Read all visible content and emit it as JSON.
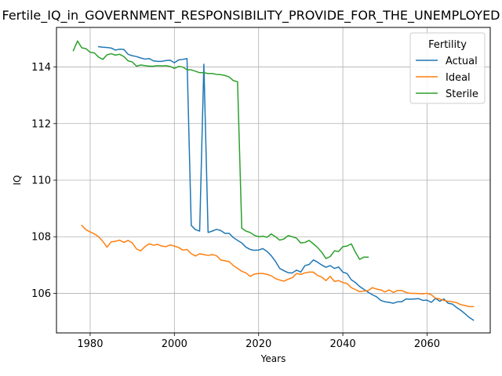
{
  "chart_data": {
    "type": "line",
    "title": "Fertile_IQ_in_GOVERNMENT_RESPONSIBILITY_PROVIDE_FOR_THE_UNEMPLOYED",
    "xlabel": "Years",
    "ylabel": "IQ",
    "xlim": [
      1972,
      2075
    ],
    "ylim": [
      104.6,
      115.4
    ],
    "x_ticks": [
      1980,
      2000,
      2020,
      2040,
      2060
    ],
    "y_ticks": [
      106,
      108,
      110,
      112,
      114
    ],
    "grid": true,
    "legend": {
      "title": "Fertility",
      "placement": "top-right"
    },
    "series": [
      {
        "name": "Actual",
        "color": "#1f77b4",
        "points": [
          [
            1982,
            114.72
          ],
          [
            1983,
            114.7
          ],
          [
            1984,
            114.69
          ],
          [
            1985,
            114.67
          ],
          [
            1986,
            114.6
          ],
          [
            1987,
            114.63
          ],
          [
            1988,
            114.62
          ],
          [
            1989,
            114.45
          ],
          [
            1990,
            114.4
          ],
          [
            1991,
            114.37
          ],
          [
            1992,
            114.32
          ],
          [
            1993,
            114.28
          ],
          [
            1994,
            114.3
          ],
          [
            1995,
            114.22
          ],
          [
            1996,
            114.2
          ],
          [
            1997,
            114.2
          ],
          [
            1998,
            114.23
          ],
          [
            1999,
            114.24
          ],
          [
            2000,
            114.15
          ],
          [
            2001,
            114.25
          ],
          [
            2002,
            114.27
          ],
          [
            2003,
            114.3
          ],
          [
            2004,
            108.4
          ],
          [
            2005,
            108.25
          ],
          [
            2006,
            108.2
          ],
          [
            2007,
            114.1
          ],
          [
            2008,
            108.15
          ],
          [
            2009,
            108.2
          ],
          [
            2010,
            108.26
          ],
          [
            2011,
            108.22
          ],
          [
            2012,
            108.12
          ],
          [
            2013,
            108.12
          ],
          [
            2014,
            107.97
          ],
          [
            2015,
            107.87
          ],
          [
            2016,
            107.78
          ],
          [
            2017,
            107.63
          ],
          [
            2018,
            107.55
          ],
          [
            2019,
            107.52
          ],
          [
            2020,
            107.53
          ],
          [
            2021,
            107.58
          ],
          [
            2022,
            107.48
          ],
          [
            2023,
            107.33
          ],
          [
            2024,
            107.13
          ],
          [
            2025,
            106.88
          ],
          [
            2026,
            106.8
          ],
          [
            2027,
            106.73
          ],
          [
            2028,
            106.72
          ],
          [
            2029,
            106.82
          ],
          [
            2030,
            106.75
          ],
          [
            2031,
            106.98
          ],
          [
            2032,
            107.02
          ],
          [
            2033,
            107.18
          ],
          [
            2034,
            107.1
          ],
          [
            2035,
            107.0
          ],
          [
            2036,
            106.92
          ],
          [
            2037,
            106.98
          ],
          [
            2038,
            106.88
          ],
          [
            2039,
            106.93
          ],
          [
            2040,
            106.75
          ],
          [
            2041,
            106.7
          ],
          [
            2042,
            106.48
          ],
          [
            2043,
            106.38
          ],
          [
            2044,
            106.24
          ],
          [
            2045,
            106.14
          ],
          [
            2046,
            106.04
          ],
          [
            2047,
            105.95
          ],
          [
            2048,
            105.88
          ],
          [
            2049,
            105.75
          ],
          [
            2050,
            105.7
          ],
          [
            2051,
            105.68
          ],
          [
            2052,
            105.65
          ],
          [
            2053,
            105.7
          ],
          [
            2054,
            105.7
          ],
          [
            2055,
            105.8
          ],
          [
            2056,
            105.79
          ],
          [
            2057,
            105.8
          ],
          [
            2058,
            105.81
          ],
          [
            2059,
            105.75
          ],
          [
            2060,
            105.76
          ],
          [
            2061,
            105.68
          ],
          [
            2062,
            105.82
          ],
          [
            2063,
            105.72
          ],
          [
            2064,
            105.8
          ],
          [
            2065,
            105.65
          ],
          [
            2066,
            105.62
          ],
          [
            2067,
            105.5
          ],
          [
            2068,
            105.4
          ],
          [
            2069,
            105.28
          ],
          [
            2070,
            105.15
          ],
          [
            2071,
            105.05
          ]
        ]
      },
      {
        "name": "Ideal",
        "color": "#ff7f0e",
        "points": [
          [
            1978,
            108.4
          ],
          [
            1979,
            108.25
          ],
          [
            1980,
            108.17
          ],
          [
            1981,
            108.1
          ],
          [
            1982,
            108.0
          ],
          [
            1983,
            107.84
          ],
          [
            1984,
            107.63
          ],
          [
            1985,
            107.82
          ],
          [
            1986,
            107.84
          ],
          [
            1987,
            107.88
          ],
          [
            1988,
            107.8
          ],
          [
            1989,
            107.87
          ],
          [
            1990,
            107.78
          ],
          [
            1991,
            107.57
          ],
          [
            1992,
            107.5
          ],
          [
            1993,
            107.65
          ],
          [
            1994,
            107.75
          ],
          [
            1995,
            107.7
          ],
          [
            1996,
            107.73
          ],
          [
            1997,
            107.67
          ],
          [
            1998,
            107.65
          ],
          [
            1999,
            107.71
          ],
          [
            2000,
            107.67
          ],
          [
            2001,
            107.62
          ],
          [
            2002,
            107.53
          ],
          [
            2003,
            107.55
          ],
          [
            2004,
            107.4
          ],
          [
            2005,
            107.32
          ],
          [
            2006,
            107.4
          ],
          [
            2007,
            107.37
          ],
          [
            2008,
            107.34
          ],
          [
            2009,
            107.37
          ],
          [
            2010,
            107.33
          ],
          [
            2011,
            107.18
          ],
          [
            2012,
            107.15
          ],
          [
            2013,
            107.12
          ],
          [
            2014,
            106.98
          ],
          [
            2015,
            106.88
          ],
          [
            2016,
            106.78
          ],
          [
            2017,
            106.72
          ],
          [
            2018,
            106.6
          ],
          [
            2019,
            106.68
          ],
          [
            2020,
            106.7
          ],
          [
            2021,
            106.7
          ],
          [
            2022,
            106.67
          ],
          [
            2023,
            106.62
          ],
          [
            2024,
            106.52
          ],
          [
            2025,
            106.47
          ],
          [
            2026,
            106.43
          ],
          [
            2027,
            106.5
          ],
          [
            2028,
            106.55
          ],
          [
            2029,
            106.7
          ],
          [
            2030,
            106.67
          ],
          [
            2031,
            106.72
          ],
          [
            2032,
            106.75
          ],
          [
            2033,
            106.75
          ],
          [
            2034,
            106.63
          ],
          [
            2035,
            106.57
          ],
          [
            2036,
            106.45
          ],
          [
            2037,
            106.6
          ],
          [
            2038,
            106.42
          ],
          [
            2039,
            106.45
          ],
          [
            2040,
            106.38
          ],
          [
            2041,
            106.35
          ],
          [
            2042,
            106.2
          ],
          [
            2043,
            106.13
          ],
          [
            2044,
            106.06
          ],
          [
            2045,
            106.08
          ],
          [
            2046,
            106.1
          ],
          [
            2047,
            106.2
          ],
          [
            2048,
            106.15
          ],
          [
            2049,
            106.12
          ],
          [
            2050,
            106.05
          ],
          [
            2051,
            106.12
          ],
          [
            2052,
            106.03
          ],
          [
            2053,
            106.1
          ],
          [
            2054,
            106.1
          ],
          [
            2055,
            106.03
          ],
          [
            2056,
            106.0
          ],
          [
            2057,
            106.0
          ],
          [
            2058,
            105.99
          ],
          [
            2059,
            105.98
          ],
          [
            2060,
            106.0
          ],
          [
            2061,
            105.95
          ],
          [
            2062,
            105.83
          ],
          [
            2063,
            105.8
          ],
          [
            2064,
            105.75
          ],
          [
            2065,
            105.72
          ],
          [
            2066,
            105.7
          ],
          [
            2067,
            105.67
          ],
          [
            2068,
            105.6
          ],
          [
            2069,
            105.57
          ],
          [
            2070,
            105.53
          ],
          [
            2071,
            105.53
          ]
        ]
      },
      {
        "name": "Sterile",
        "color": "#2ca02c",
        "points": [
          [
            1976,
            114.58
          ],
          [
            1977,
            114.92
          ],
          [
            1978,
            114.68
          ],
          [
            1979,
            114.65
          ],
          [
            1980,
            114.52
          ],
          [
            1981,
            114.5
          ],
          [
            1982,
            114.35
          ],
          [
            1983,
            114.27
          ],
          [
            1984,
            114.43
          ],
          [
            1985,
            114.47
          ],
          [
            1986,
            114.42
          ],
          [
            1987,
            114.45
          ],
          [
            1988,
            114.37
          ],
          [
            1989,
            114.22
          ],
          [
            1990,
            114.18
          ],
          [
            1991,
            114.03
          ],
          [
            1992,
            114.07
          ],
          [
            1993,
            114.05
          ],
          [
            1994,
            114.03
          ],
          [
            1995,
            114.03
          ],
          [
            1996,
            114.05
          ],
          [
            1997,
            114.04
          ],
          [
            1998,
            114.05
          ],
          [
            1999,
            114.02
          ],
          [
            2000,
            113.95
          ],
          [
            2001,
            114.02
          ],
          [
            2002,
            114.0
          ],
          [
            2003,
            113.9
          ],
          [
            2004,
            113.9
          ],
          [
            2005,
            113.85
          ],
          [
            2006,
            113.8
          ],
          [
            2007,
            113.8
          ],
          [
            2008,
            113.77
          ],
          [
            2009,
            113.77
          ],
          [
            2010,
            113.74
          ],
          [
            2011,
            113.73
          ],
          [
            2012,
            113.7
          ],
          [
            2013,
            113.65
          ],
          [
            2014,
            113.52
          ],
          [
            2015,
            113.48
          ],
          [
            2016,
            108.3
          ],
          [
            2017,
            108.2
          ],
          [
            2018,
            108.15
          ],
          [
            2019,
            108.05
          ],
          [
            2020,
            108.0
          ],
          [
            2021,
            108.02
          ],
          [
            2022,
            107.98
          ],
          [
            2023,
            108.1
          ],
          [
            2024,
            108.0
          ],
          [
            2025,
            107.88
          ],
          [
            2026,
            107.92
          ],
          [
            2027,
            108.04
          ],
          [
            2028,
            108.0
          ],
          [
            2029,
            107.95
          ],
          [
            2030,
            107.78
          ],
          [
            2031,
            107.8
          ],
          [
            2032,
            107.87
          ],
          [
            2033,
            107.75
          ],
          [
            2034,
            107.62
          ],
          [
            2035,
            107.45
          ],
          [
            2036,
            107.23
          ],
          [
            2037,
            107.3
          ],
          [
            2038,
            107.5
          ],
          [
            2039,
            107.48
          ],
          [
            2040,
            107.65
          ],
          [
            2041,
            107.67
          ],
          [
            2042,
            107.75
          ],
          [
            2043,
            107.45
          ],
          [
            2044,
            107.2
          ],
          [
            2045,
            107.28
          ],
          [
            2046,
            107.28
          ]
        ]
      }
    ]
  }
}
